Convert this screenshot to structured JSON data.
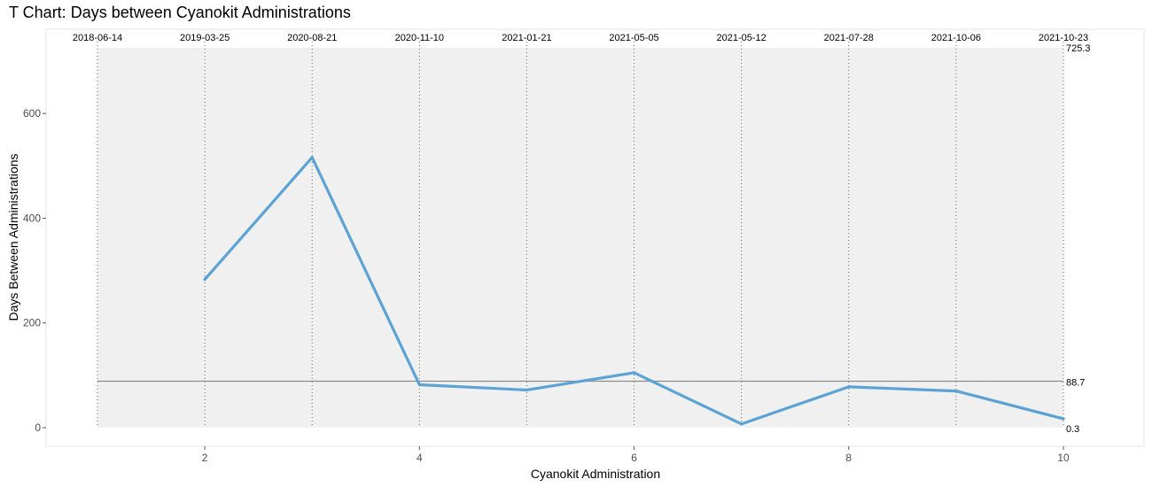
{
  "chart_data": {
    "type": "line",
    "title": "T Chart: Days between Cyanokit Administrations",
    "xlabel": "Cyanokit Administration",
    "ylabel": "Days Between Administrations",
    "xlim": [
      1,
      10
    ],
    "ylim": [
      0,
      725.3
    ],
    "x_ticks": [
      2,
      4,
      6,
      8,
      10
    ],
    "y_ticks": [
      0,
      200,
      400,
      600
    ],
    "grid": false,
    "series": [
      {
        "color": "#5ba3d5",
        "x": [
          2,
          3,
          4,
          5,
          6,
          7,
          8,
          9,
          10
        ],
        "y": [
          283,
          516,
          82,
          72,
          105,
          7,
          78,
          70,
          17
        ]
      }
    ],
    "top_date_labels": [
      {
        "x": 1,
        "label": "2018-06-14"
      },
      {
        "x": 2,
        "label": "2019-03-25"
      },
      {
        "x": 3,
        "label": "2020-08-21"
      },
      {
        "x": 4,
        "label": "2020-11-10"
      },
      {
        "x": 5,
        "label": "2021-01-21"
      },
      {
        "x": 6,
        "label": "2021-05-05"
      },
      {
        "x": 7,
        "label": "2021-05-12"
      },
      {
        "x": 8,
        "label": "2021-07-28"
      },
      {
        "x": 9,
        "label": "2021-10-06"
      },
      {
        "x": 10,
        "label": "2021-10-23"
      }
    ],
    "limits": {
      "center": 88.7,
      "center_label": "88.7",
      "lower": 0.3,
      "lower_label": "0.3",
      "upper": 725.3,
      "upper_label": "725.3"
    },
    "colors": {
      "line": "#5ba3d5",
      "control_band": "#f0f0f0",
      "center_line": "#8c8c8c",
      "date_lines": "#666666"
    }
  }
}
